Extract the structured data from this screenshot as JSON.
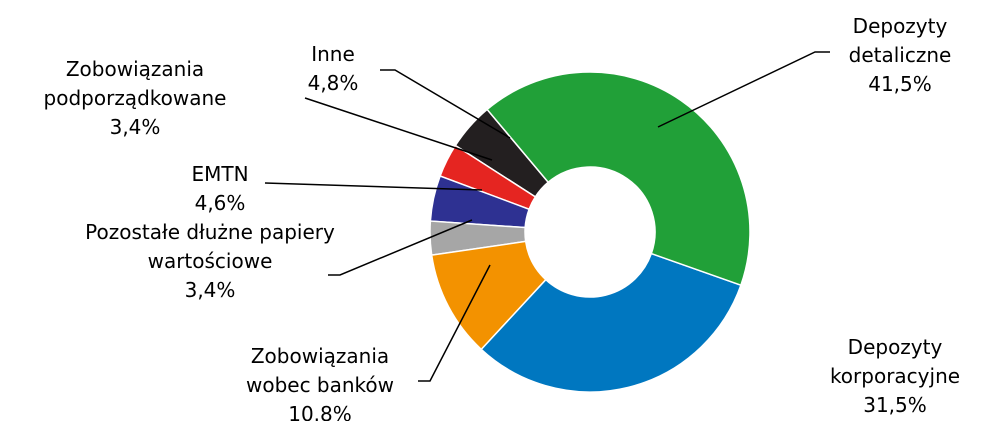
{
  "chart_data": {
    "type": "donut",
    "categories": [
      "Depozyty detaliczne",
      "Depozyty korporacyjne",
      "Zobowiązania wobec banków",
      "Pozostałe dłużne papiery wartościowe",
      "EMTN",
      "Zobowiązania podporządkowane",
      "Inne"
    ],
    "values": [
      41.5,
      31.5,
      10.8,
      3.4,
      4.6,
      3.4,
      4.8
    ],
    "value_labels": [
      "41,5%",
      "31,5%",
      "10.8%",
      "3,4%",
      "4,6%",
      "3,4%",
      "4,8%"
    ],
    "colors": [
      "#21a038",
      "#0077c0",
      "#f39200",
      "#a6a6a6",
      "#2e3192",
      "#e52521",
      "#231f20"
    ]
  }
}
